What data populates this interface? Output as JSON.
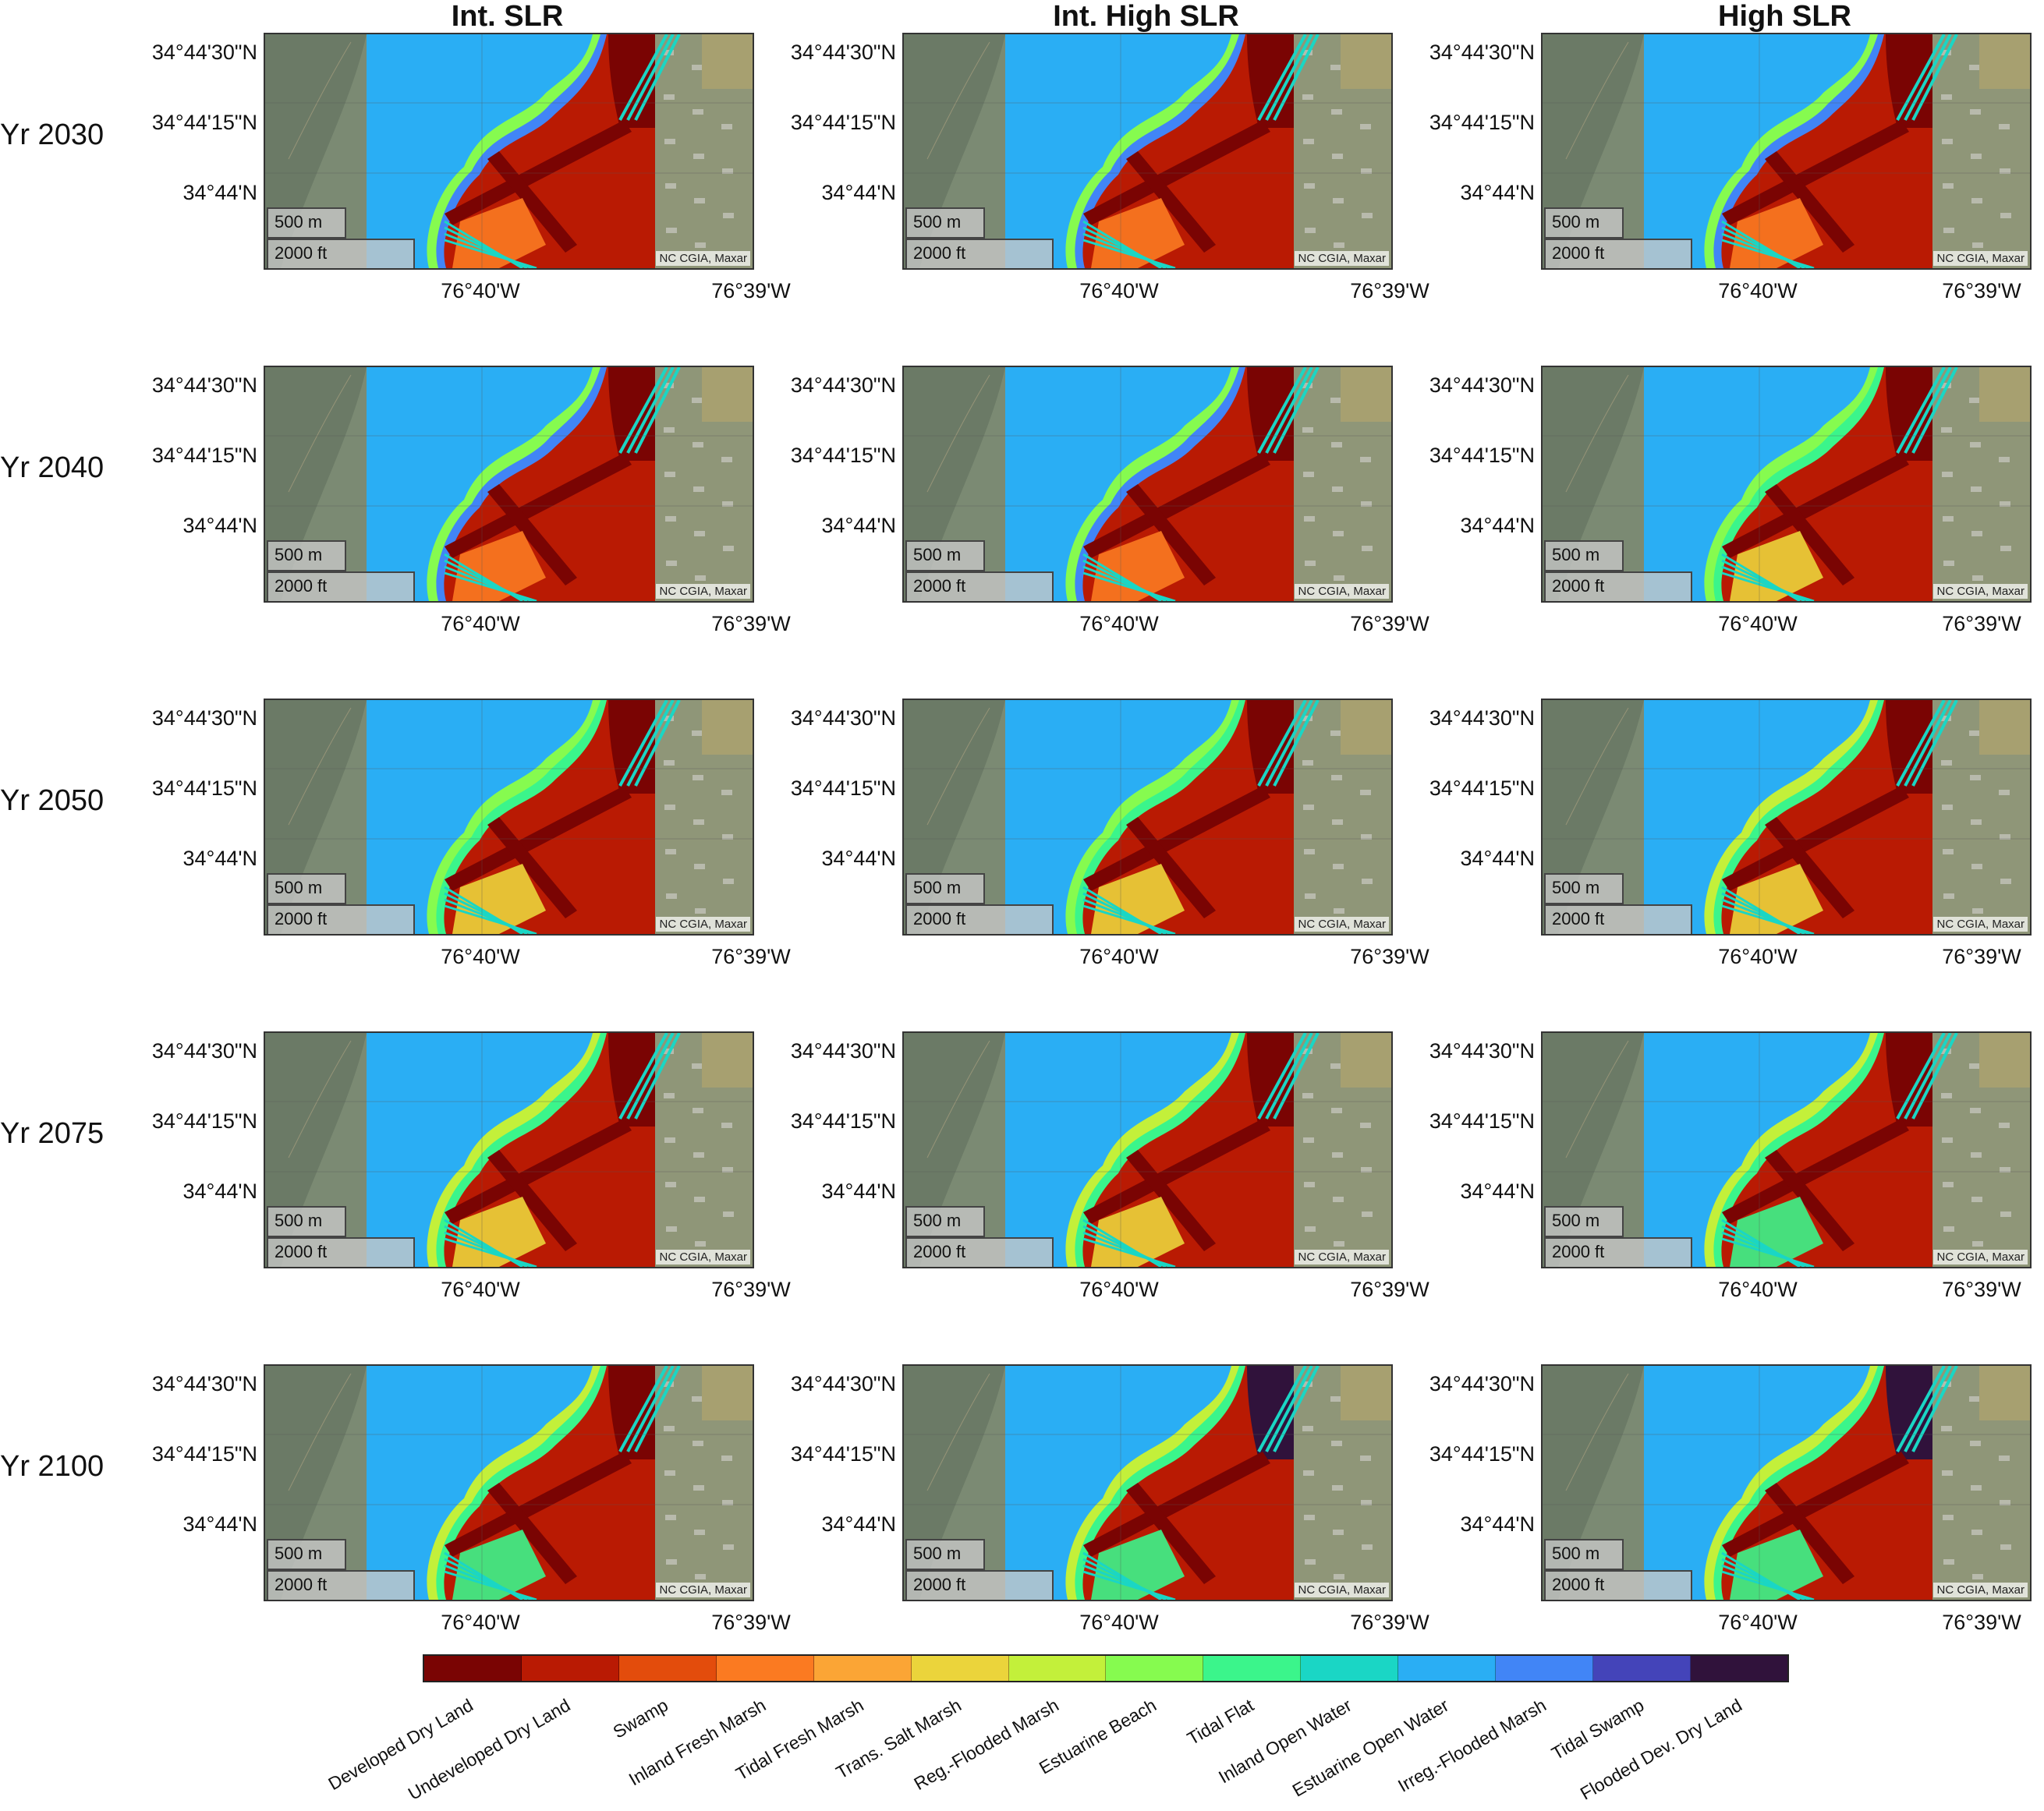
{
  "columns": [
    "Int. SLR",
    "Int. High SLR",
    "High SLR"
  ],
  "rows": [
    {
      "label": "Yr 2030",
      "stage": 0
    },
    {
      "label": "Yr 2040",
      "stage": 1
    },
    {
      "label": "Yr 2050",
      "stage": 2
    },
    {
      "label": "Yr 2075",
      "stage": 3
    },
    {
      "label": "Yr 2100",
      "stage": 4
    }
  ],
  "lat_ticks": [
    "34°44'30\"N",
    "34°44'15\"N",
    "34°44'N"
  ],
  "lon_ticks": [
    "76°40'W",
    "76°39'W"
  ],
  "scale_bar": {
    "metric": "500 m",
    "imperial": "2000 ft"
  },
  "credit": "NC CGIA, Maxar",
  "legend": [
    {
      "label": "Developed Dry Land",
      "color": "#7a0403"
    },
    {
      "label": "Undeveloped Dry Land",
      "color": "#b91a03"
    },
    {
      "label": "Swamp",
      "color": "#e34c0c"
    },
    {
      "label": "Inland Fresh Marsh",
      "color": "#fb7a21"
    },
    {
      "label": "Tidal Fresh Marsh",
      "color": "#fba535"
    },
    {
      "label": "Trans. Salt Marsh",
      "color": "#ebd43b"
    },
    {
      "label": "Reg.-Flooded Marsh",
      "color": "#c3f03a"
    },
    {
      "label": "Estuarine Beach",
      "color": "#86fb4f"
    },
    {
      "label": "Tidal Flat",
      "color": "#3bf58b"
    },
    {
      "label": "Inland Open Water",
      "color": "#1ad6c5"
    },
    {
      "label": "Estuarine Open Water",
      "color": "#2aaef4"
    },
    {
      "label": "Irreg.-Flooded Marsh",
      "color": "#4185f6"
    },
    {
      "label": "Tidal Swamp",
      "color": "#4444b9"
    },
    {
      "label": "Flooded Dev. Dry Land",
      "color": "#30123b"
    }
  ]
}
